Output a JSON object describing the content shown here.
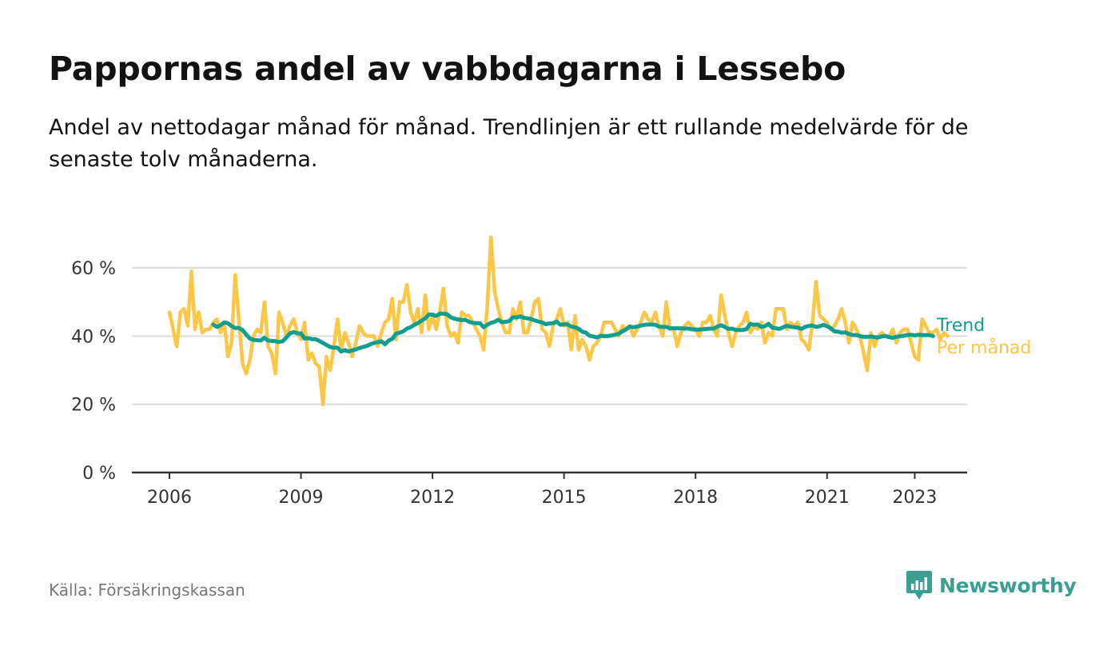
{
  "title": "Pappornas andel av vabbdagarna i Lessebo",
  "subtitle": "Andel av nettodagar månad för månad. Trendlinjen är ett rullande medelvärde för de senaste tolv månaderna.",
  "source": "Källa: Försäkringskassan",
  "brand": {
    "name": "Newsworthy",
    "icon": "newsworthy-logo-icon",
    "color": "#3a9e92"
  },
  "chart_data": {
    "type": "line",
    "title": "Pappornas andel av vabbdagarna i Lessebo",
    "xlabel": "",
    "ylabel": "",
    "x_start": "2006-01",
    "x_step": "month",
    "x_ticks": [
      "2006",
      "2009",
      "2012",
      "2015",
      "2018",
      "2021",
      "2023"
    ],
    "y_ticks": [
      "0 %",
      "20 %",
      "40 %",
      "60 %"
    ],
    "y_tick_values": [
      0,
      20,
      40,
      60
    ],
    "ylim": [
      0,
      70
    ],
    "grid": true,
    "legend": "inline-right",
    "series": [
      {
        "name": "Per månad",
        "color": "#fcc647",
        "values": [
          47,
          42,
          37,
          47,
          48,
          43,
          59,
          42,
          47,
          41,
          42,
          42,
          44,
          45,
          41,
          44,
          34,
          38,
          58,
          45,
          32,
          29,
          33,
          40,
          42,
          41,
          50,
          37,
          35,
          29,
          47,
          44,
          40,
          43,
          45,
          41,
          39,
          44,
          33,
          35,
          32,
          31,
          20,
          34,
          30,
          37,
          45,
          36,
          41,
          38,
          34,
          38,
          43,
          41,
          40,
          40,
          40,
          37,
          41,
          44,
          45,
          51,
          39,
          50,
          50,
          55,
          47,
          44,
          48,
          41,
          52,
          42,
          46,
          42,
          47,
          54,
          43,
          40,
          41,
          38,
          47,
          46,
          46,
          44,
          42,
          40,
          36,
          49,
          69,
          53,
          48,
          44,
          41,
          41,
          48,
          45,
          50,
          41,
          41,
          45,
          50,
          51,
          42,
          41,
          37,
          43,
          45,
          48,
          43,
          44,
          36,
          46,
          36,
          39,
          37,
          33,
          37,
          38,
          40,
          44,
          44,
          44,
          42,
          40,
          43,
          42,
          43,
          40,
          42,
          44,
          47,
          45,
          44,
          47,
          43,
          40,
          50,
          42,
          42,
          37,
          41,
          43,
          44,
          43,
          42,
          40,
          44,
          44,
          46,
          42,
          40,
          52,
          46,
          41,
          37,
          41,
          43,
          44,
          47,
          41,
          43,
          42,
          44,
          38,
          41,
          40,
          48,
          48,
          48,
          42,
          44,
          43,
          44,
          39,
          38,
          36,
          44,
          56,
          46,
          45,
          44,
          42,
          43,
          45,
          48,
          44,
          38,
          44,
          42,
          40,
          35,
          30,
          41,
          37,
          40,
          41,
          40,
          40,
          42,
          38,
          41,
          42,
          42,
          38,
          34,
          33,
          45,
          43,
          41,
          41,
          42,
          39,
          41,
          40
        ]
      },
      {
        "name": "Trend",
        "color": "#119e8e",
        "values": [
          null,
          null,
          null,
          null,
          null,
          null,
          null,
          null,
          null,
          null,
          null,
          null,
          43.4,
          42.7,
          43.2,
          44,
          43.8,
          42.9,
          42.4,
          42.4,
          41.8,
          40.5,
          39.3,
          38.9,
          38.8,
          38.7,
          39.5,
          38.7,
          38.6,
          38.5,
          38.3,
          38.5,
          39.6,
          40.8,
          41.2,
          40.8,
          40.8,
          39.3,
          39.4,
          39.1,
          39.1,
          38.6,
          38,
          37.4,
          36.8,
          36.6,
          36.6,
          35.5,
          35.9,
          35.5,
          35.8,
          36.1,
          36.5,
          36.8,
          37.1,
          37.6,
          38,
          38.2,
          38.5,
          37.6,
          38.7,
          39.2,
          40.7,
          41,
          41.4,
          42.2,
          42.6,
          43.3,
          43.8,
          44.5,
          45.2,
          46.3,
          46.3,
          45.9,
          46.6,
          46.6,
          46.4,
          45.5,
          45.1,
          44.9,
          44.7,
          44.8,
          44.2,
          43.9,
          43.8,
          43.8,
          42.6,
          43.3,
          43.9,
          44.2,
          44.8,
          44.1,
          44.2,
          44.4,
          45.5,
          45.5,
          45.8,
          45.4,
          45.2,
          45,
          44.6,
          44.3,
          44,
          43.5,
          43.7,
          43.8,
          44.3,
          43.3,
          43.5,
          43.4,
          42.8,
          42.6,
          42.1,
          41.3,
          41,
          40.1,
          39.9,
          39.6,
          40.1,
          40,
          40,
          40.2,
          40.4,
          40.7,
          41.4,
          42,
          42.8,
          42.6,
          42.8,
          43.1,
          43.3,
          43.4,
          43.4,
          43.3,
          42.8,
          42.7,
          42.7,
          42.3,
          42.3,
          42.3,
          42.3,
          42.2,
          42.2,
          42,
          41.9,
          41.9,
          42,
          42.1,
          42.2,
          42.2,
          42.8,
          43.2,
          42.7,
          42.1,
          42.2,
          41.8,
          41.8,
          41.8,
          42.1,
          43.6,
          43.3,
          43.4,
          42.7,
          42.9,
          43.6,
          42.5,
          42.3,
          42.1,
          42.6,
          43,
          42.8,
          42.6,
          42.5,
          42.1,
          42.7,
          43,
          43.1,
          42.7,
          42.9,
          43.3,
          42.9,
          42.3,
          41.4,
          41.3,
          41,
          41.1,
          40.6,
          40.3,
          40.3,
          40,
          39.8,
          39.8,
          39.9,
          39.7,
          39.6,
          39.9,
          40,
          39.7,
          39.5,
          39.8,
          40,
          40.1,
          40.3,
          40.4,
          40.2,
          40.4,
          40.3,
          40.3,
          40.3,
          40
        ]
      }
    ]
  }
}
